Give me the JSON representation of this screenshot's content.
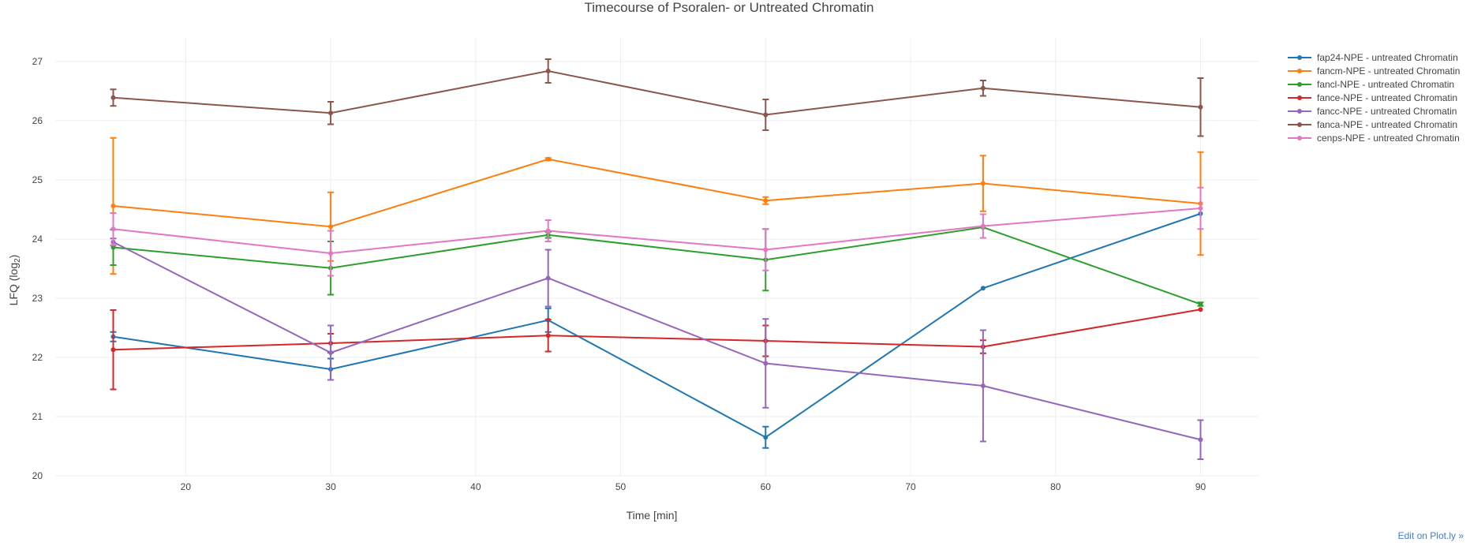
{
  "chart_data": {
    "type": "line",
    "title": "Timecourse of Psoralen- or Untreated Chromatin",
    "xlabel": "Time [min]",
    "ylabel_main": "LFQ (log",
    "ylabel_sub": "2",
    "ylabel_end": ")",
    "xlim": [
      11,
      94
    ],
    "ylim": [
      20,
      27.4
    ],
    "xticks": [
      20,
      30,
      40,
      50,
      60,
      70,
      80,
      90
    ],
    "yticks": [
      20,
      21,
      22,
      23,
      24,
      25,
      26,
      27
    ],
    "x": [
      15,
      30,
      45,
      60,
      75,
      90
    ],
    "grid": true,
    "legend_position": "top-right",
    "series": [
      {
        "name": "fap24-NPE - untreated Chromatin",
        "color": "#1f77b4",
        "values": [
          22.35,
          21.8,
          22.63,
          20.65,
          23.17,
          24.43
        ],
        "errors": [
          0.08,
          0.18,
          0.2,
          0.18,
          0.0,
          0.0
        ]
      },
      {
        "name": "fancm-NPE - untreated Chromatin",
        "color": "#ff7f0e",
        "values": [
          24.56,
          24.21,
          25.35,
          24.65,
          24.94,
          24.6
        ],
        "errors": [
          1.15,
          0.58,
          0.02,
          0.06,
          0.47,
          0.87
        ]
      },
      {
        "name": "fancl-NPE - untreated Chromatin",
        "color": "#2ca02c",
        "values": [
          23.86,
          23.51,
          24.07,
          23.65,
          24.2,
          22.9
        ],
        "errors": [
          0.3,
          0.45,
          0.05,
          0.52,
          0.0,
          0.03
        ]
      },
      {
        "name": "fance-NPE - untreated Chromatin",
        "color": "#d62728",
        "values": [
          22.13,
          22.24,
          22.37,
          22.28,
          22.18,
          22.81
        ],
        "errors": [
          0.67,
          0.16,
          0.27,
          0.26,
          0.11,
          0.0
        ]
      },
      {
        "name": "fancc-NPE - untreated Chromatin",
        "color": "#9467bd",
        "values": [
          23.95,
          22.08,
          23.34,
          21.9,
          21.52,
          20.61
        ],
        "errors": [
          0.06,
          0.46,
          0.48,
          0.75,
          0.94,
          0.33
        ]
      },
      {
        "name": "fanca-NPE - untreated Chromatin",
        "color": "#8c564b",
        "values": [
          26.39,
          26.13,
          26.84,
          26.1,
          26.55,
          26.23
        ],
        "errors": [
          0.14,
          0.19,
          0.2,
          0.26,
          0.13,
          0.49
        ]
      },
      {
        "name": "cenps-NPE - untreated Chromatin",
        "color": "#e377c2",
        "values": [
          24.17,
          23.76,
          24.14,
          23.82,
          24.22,
          24.52
        ],
        "errors": [
          0.27,
          0.38,
          0.18,
          0.35,
          0.2,
          0.35
        ]
      }
    ]
  },
  "edit_link": "Edit on Plot.ly »"
}
